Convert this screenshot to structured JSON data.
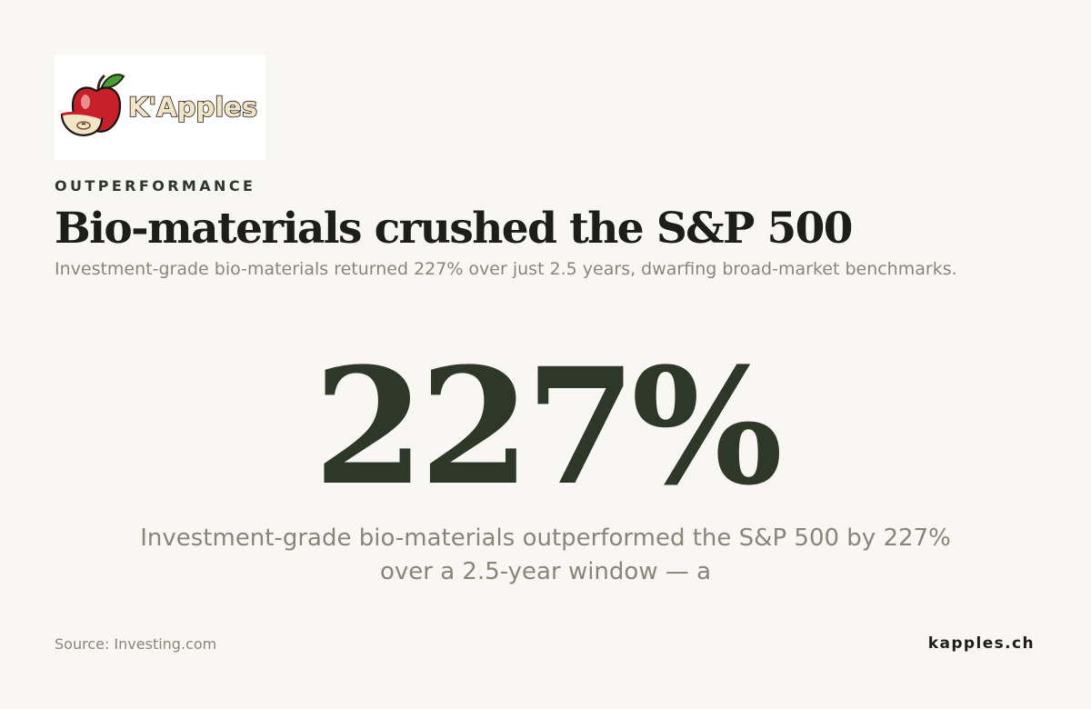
{
  "brand": {
    "logo_text": "K'Apples",
    "logo_icon": "apple-icon"
  },
  "eyebrow": "OUTPERFORMANCE",
  "headline": "Bio-materials crushed the S&P 500",
  "subhead": "Investment-grade bio-materials returned 227% over just 2.5 years, dwarfing broad-market benchmarks.",
  "stat": {
    "value": "227%"
  },
  "caption": "Investment-grade bio-materials outperformed the S&P 500 by 227% over a 2.5-year window — a",
  "footer": {
    "source": "Source: Investing.com",
    "site": "kapples.ch"
  },
  "colors": {
    "background": "#f9f7f3",
    "accent_dark_green": "#2e3829",
    "muted_text": "#8a8579",
    "apple_red": "#c8202a",
    "leaf_green": "#4e9a32"
  }
}
